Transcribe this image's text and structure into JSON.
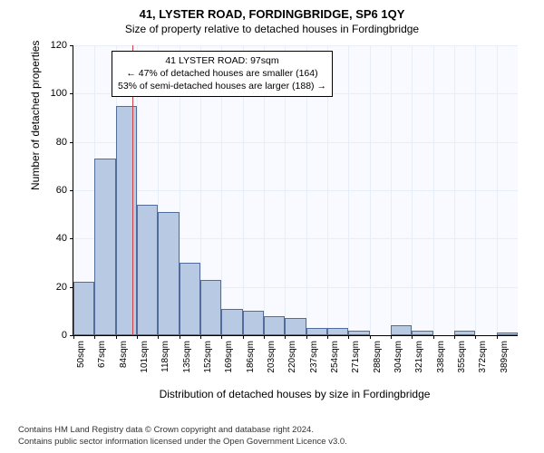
{
  "title_main": "41, LYSTER ROAD, FORDINGBRIDGE, SP6 1QY",
  "title_sub": "Size of property relative to detached houses in Fordingbridge",
  "ylabel": "Number of detached properties",
  "xlabel": "Distribution of detached houses by size in Fordingbridge",
  "footer_line1": "Contains HM Land Registry data © Crown copyright and database right 2024.",
  "footer_line2": "Contains public sector information licensed under the Open Government Licence v3.0.",
  "info_box": {
    "line1": "41 LYSTER ROAD: 97sqm",
    "line2": "← 47% of detached houses are smaller (164)",
    "line3": "53% of semi-detached houses are larger (188) →"
  },
  "colors": {
    "plot_bg": "#f8faff",
    "grid": "#e7eef8",
    "bar_fill": "#b8c9e3",
    "bar_border": "#526d9c",
    "marker": "#cc4444"
  },
  "chart": {
    "type": "histogram",
    "ylim": [
      0,
      120
    ],
    "ytick_step": 20,
    "yticks": [
      0,
      20,
      40,
      60,
      80,
      100,
      120
    ],
    "x_bin_width": 17,
    "x_start": 50,
    "xticks": [
      "50sqm",
      "67sqm",
      "84sqm",
      "101sqm",
      "118sqm",
      "135sqm",
      "152sqm",
      "169sqm",
      "186sqm",
      "203sqm",
      "220sqm",
      "237sqm",
      "254sqm",
      "271sqm",
      "288sqm",
      "304sqm",
      "321sqm",
      "338sqm",
      "355sqm",
      "372sqm",
      "389sqm"
    ],
    "values": [
      22,
      73,
      95,
      54,
      51,
      30,
      23,
      11,
      10,
      8,
      7,
      3,
      3,
      2,
      0,
      4,
      2,
      0,
      2,
      0,
      1
    ],
    "marker_value": 97,
    "title_fontsize": 13,
    "label_fontsize": 12,
    "tick_fontsize": 11
  }
}
